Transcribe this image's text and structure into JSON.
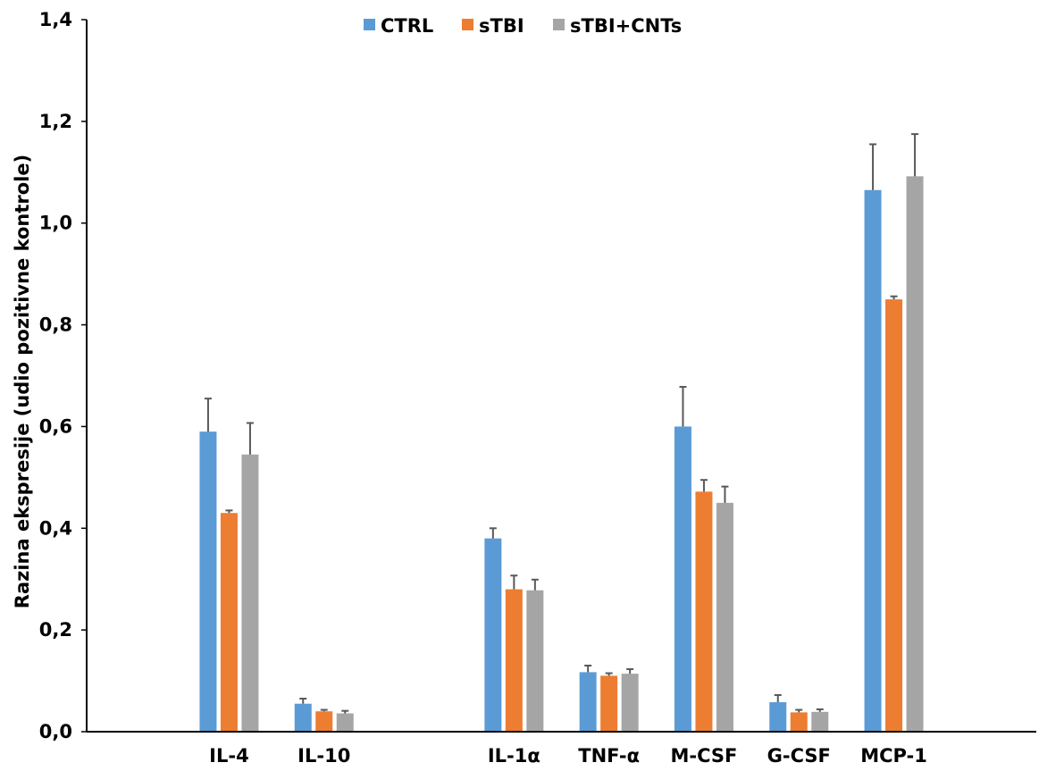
{
  "chart_data": {
    "type": "bar",
    "title": "",
    "xlabel": "",
    "ylabel": "Razina ekspresije (udio pozitivne kontrole)",
    "ylim": [
      0,
      1.4
    ],
    "yticks": [
      "0,0",
      "0,2",
      "0,4",
      "0,6",
      "0,8",
      "1,0",
      "1,2",
      "1,4"
    ],
    "grid": false,
    "legend_position": "top-center",
    "categories": [
      "",
      "IL-4",
      "IL-10",
      "",
      "IL-1α",
      "TNF-α",
      "M-CSF",
      "G-CSF",
      "MCP-1",
      ""
    ],
    "series": [
      {
        "name": "CTRL",
        "color": "#5b9bd5",
        "values": [
          null,
          0.59,
          0.055,
          null,
          0.38,
          0.117,
          0.6,
          0.058,
          1.065,
          null
        ],
        "errors": [
          null,
          0.065,
          0.01,
          null,
          0.02,
          0.013,
          0.078,
          0.014,
          0.09,
          null
        ]
      },
      {
        "name": "sTBI",
        "color": "#ed7d31",
        "values": [
          null,
          0.43,
          0.04,
          null,
          0.28,
          0.11,
          0.472,
          0.038,
          0.85,
          null
        ],
        "errors": [
          null,
          0.005,
          0.003,
          null,
          0.027,
          0.005,
          0.023,
          0.005,
          0.006,
          null
        ]
      },
      {
        "name": "sTBI+CNTs",
        "color": "#a5a5a5",
        "values": [
          null,
          0.545,
          0.036,
          null,
          0.278,
          0.114,
          0.45,
          0.039,
          1.092,
          null
        ],
        "errors": [
          null,
          0.062,
          0.005,
          null,
          0.021,
          0.009,
          0.032,
          0.005,
          0.083,
          null
        ]
      }
    ]
  }
}
